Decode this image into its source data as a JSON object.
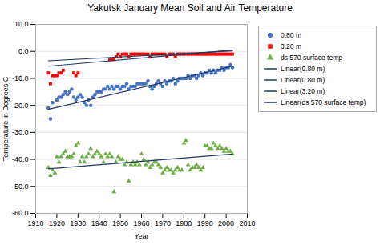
{
  "chart_data": {
    "type": "scatter",
    "title": "Yakutsk  January Mean Soil  and  Air Temperature",
    "xlabel": "Year",
    "ylabel": "Temperature in Degrees C",
    "xlim": [
      1910,
      2010
    ],
    "ylim": [
      -60,
      10
    ],
    "xticks": [
      1910,
      1920,
      1930,
      1940,
      1950,
      1960,
      1970,
      1980,
      1990,
      2000,
      2010
    ],
    "yticks": [
      {
        "value": 10,
        "label": "10.0"
      },
      {
        "value": 0,
        "label": "0.0"
      },
      {
        "value": -10,
        "label": "-10.0"
      },
      {
        "value": -20,
        "label": "-20.0"
      },
      {
        "value": -30,
        "label": "-30.0"
      },
      {
        "value": -40,
        "label": "-40.0"
      },
      {
        "value": -50,
        "label": "-50.0"
      },
      {
        "value": -60,
        "label": "-60.0"
      }
    ],
    "grid": true,
    "legend": "right",
    "series": [
      {
        "name": "0.80 m",
        "type": "scatter",
        "marker": "circle",
        "color": "#4472c4",
        "x": [
          1916,
          1917,
          1918,
          1920,
          1921,
          1922,
          1923,
          1924,
          1925,
          1926,
          1927,
          1928,
          1929,
          1930,
          1931,
          1932,
          1933,
          1934,
          1935,
          1936,
          1937,
          1938,
          1939,
          1940,
          1941,
          1942,
          1943,
          1944,
          1945,
          1946,
          1947,
          1948,
          1949,
          1950,
          1951,
          1952,
          1953,
          1954,
          1955,
          1956,
          1957,
          1958,
          1959,
          1960,
          1961,
          1962,
          1963,
          1964,
          1965,
          1966,
          1967,
          1968,
          1969,
          1970,
          1971,
          1972,
          1973,
          1974,
          1975,
          1976,
          1977,
          1978,
          1979,
          1980,
          1981,
          1982,
          1983,
          1984,
          1985,
          1986,
          1987,
          1988,
          1989,
          1990,
          1991,
          1992,
          1993,
          1994,
          1995,
          1996,
          1997,
          1998,
          1999,
          2000,
          2001,
          2002,
          2003
        ],
        "values": [
          -21,
          -25,
          -19,
          -18,
          -17,
          -17,
          -16,
          -15,
          -16,
          -15,
          -14,
          -17,
          -18,
          -17,
          -16,
          -17,
          -19,
          -20,
          -18,
          -20,
          -17,
          -16,
          -15,
          -15,
          -15,
          -14,
          -14,
          -13,
          -14,
          -13,
          -14,
          -13,
          -13,
          -14,
          -13,
          -13,
          -12,
          -14,
          -13,
          -13,
          -13,
          -12,
          -12,
          -12,
          -12,
          -12,
          -11,
          -13,
          -14,
          -13,
          -12,
          -11,
          -12,
          -13,
          -11,
          -12,
          -11,
          -11,
          -10,
          -12,
          -11,
          -10,
          -10,
          -10,
          -10,
          -9,
          -10,
          -9,
          -9,
          -10,
          -9,
          -8,
          -9,
          -8,
          -8,
          -7,
          -8,
          -7,
          -8,
          -7,
          -7,
          -6,
          -7,
          -6,
          -6,
          -5,
          -6
        ]
      },
      {
        "name": "3.20 m",
        "type": "scatter",
        "marker": "square",
        "color": "#ff0000",
        "x": [
          1916,
          1917,
          1918,
          1919,
          1920,
          1921,
          1922,
          1923,
          1928,
          1929,
          1930,
          1945,
          1946,
          1947,
          1948,
          1949,
          1950,
          1951,
          1952,
          1953,
          1954,
          1955,
          1956,
          1957,
          1958,
          1959,
          1960,
          1961,
          1962,
          1963,
          1964,
          1965,
          1966,
          1967,
          1968,
          1969,
          1970,
          1971,
          1972,
          1973,
          1974,
          1975,
          1976,
          1977,
          1978,
          1979,
          1980,
          1981,
          1982,
          1983,
          1984,
          1985,
          1986,
          1987,
          1988,
          1989,
          1990,
          1991,
          1992,
          1993,
          1994,
          1995,
          1996,
          1997,
          1998,
          1999,
          2000,
          2001,
          2002,
          2003
        ],
        "values": [
          -8,
          -12,
          -9,
          -9,
          -9,
          -8,
          -8,
          -7,
          -8,
          -9,
          -8,
          -3,
          -3,
          -3,
          -2,
          -1,
          -2,
          -1,
          -1,
          -1,
          -2,
          -1,
          -1,
          -1,
          -1,
          -1,
          -1,
          -1,
          -1,
          -1,
          -2,
          -1,
          -1,
          -1,
          -1,
          -1,
          -1,
          -1,
          -2,
          -1,
          -1,
          -1,
          -2,
          -1,
          -1,
          -1,
          -1,
          -1,
          -1,
          -1,
          -1,
          -1,
          -1,
          -1,
          -1,
          -1,
          -1,
          -1,
          -1,
          -1,
          -1,
          -1,
          -1,
          -1,
          -1,
          -1,
          -1,
          -1,
          -1,
          -1
        ]
      },
      {
        "name": "ds 570 surface temp",
        "type": "scatter",
        "marker": "triangle",
        "color": "#70ad47",
        "x": [
          1916,
          1917,
          1918,
          1919,
          1920,
          1921,
          1922,
          1923,
          1924,
          1925,
          1926,
          1927,
          1928,
          1929,
          1930,
          1931,
          1932,
          1933,
          1934,
          1935,
          1936,
          1937,
          1938,
          1939,
          1940,
          1941,
          1942,
          1943,
          1944,
          1945,
          1946,
          1947,
          1948,
          1949,
          1950,
          1951,
          1952,
          1953,
          1954,
          1955,
          1956,
          1957,
          1958,
          1959,
          1960,
          1961,
          1962,
          1963,
          1964,
          1965,
          1966,
          1967,
          1968,
          1969,
          1970,
          1971,
          1972,
          1973,
          1974,
          1975,
          1976,
          1977,
          1978,
          1979,
          1980,
          1981,
          1982,
          1983,
          1984,
          1985,
          1986,
          1987,
          1988,
          1989,
          1990,
          1991,
          1992,
          1993,
          1994,
          1995,
          1996,
          1997,
          1998,
          1999,
          2000,
          2001,
          2002,
          2003
        ],
        "values": [
          -43,
          -46,
          -44,
          -45,
          -39,
          -41,
          -39,
          -38,
          -37,
          -39,
          -39,
          -39,
          -38,
          -35,
          -34,
          -41,
          -39,
          -41,
          -39,
          -38,
          -36,
          -39,
          -38,
          -37,
          -38,
          -39,
          -41,
          -38,
          -39,
          -38,
          -39,
          -52,
          -41,
          -39,
          -40,
          -40,
          -42,
          -41,
          -48,
          -42,
          -41,
          -42,
          -41,
          -42,
          -38,
          -40,
          -42,
          -41,
          -43,
          -42,
          -41,
          -41,
          -42,
          -43,
          -45,
          -44,
          -43,
          -44,
          -44,
          -45,
          -44,
          -43,
          -44,
          -44,
          -34,
          -33,
          -42,
          -44,
          -43,
          -43,
          -42,
          -43,
          -44,
          -43,
          -35,
          -35,
          -36,
          -36,
          -34,
          -35,
          -36,
          -35,
          -36,
          -37,
          -36,
          -37,
          -37,
          -38
        ]
      },
      {
        "name": "Linear(0.80 m)",
        "type": "line",
        "line_style": "solid",
        "color": "#1f3864",
        "x": [
          1916,
          2003
        ],
        "values": [
          -21.5,
          -5.5
        ]
      },
      {
        "name": "Linear(0.80 m)",
        "type": "line",
        "line_style": "solid",
        "color": "#1f3864",
        "x": [
          1916,
          2003
        ],
        "values": [
          -5.5,
          0.5
        ]
      },
      {
        "name": "Linear(3.20 m)",
        "type": "line",
        "line_style": "solid",
        "color": "#1f3864",
        "x": [
          1916,
          2003
        ],
        "values": [
          -3.5,
          0.2
        ]
      },
      {
        "name": "Linear(ds 570 surface temp)",
        "type": "line",
        "line_style": "solid",
        "color": "#1f3864",
        "x": [
          1916,
          2003
        ],
        "values": [
          -43.5,
          -38.0
        ]
      }
    ]
  }
}
